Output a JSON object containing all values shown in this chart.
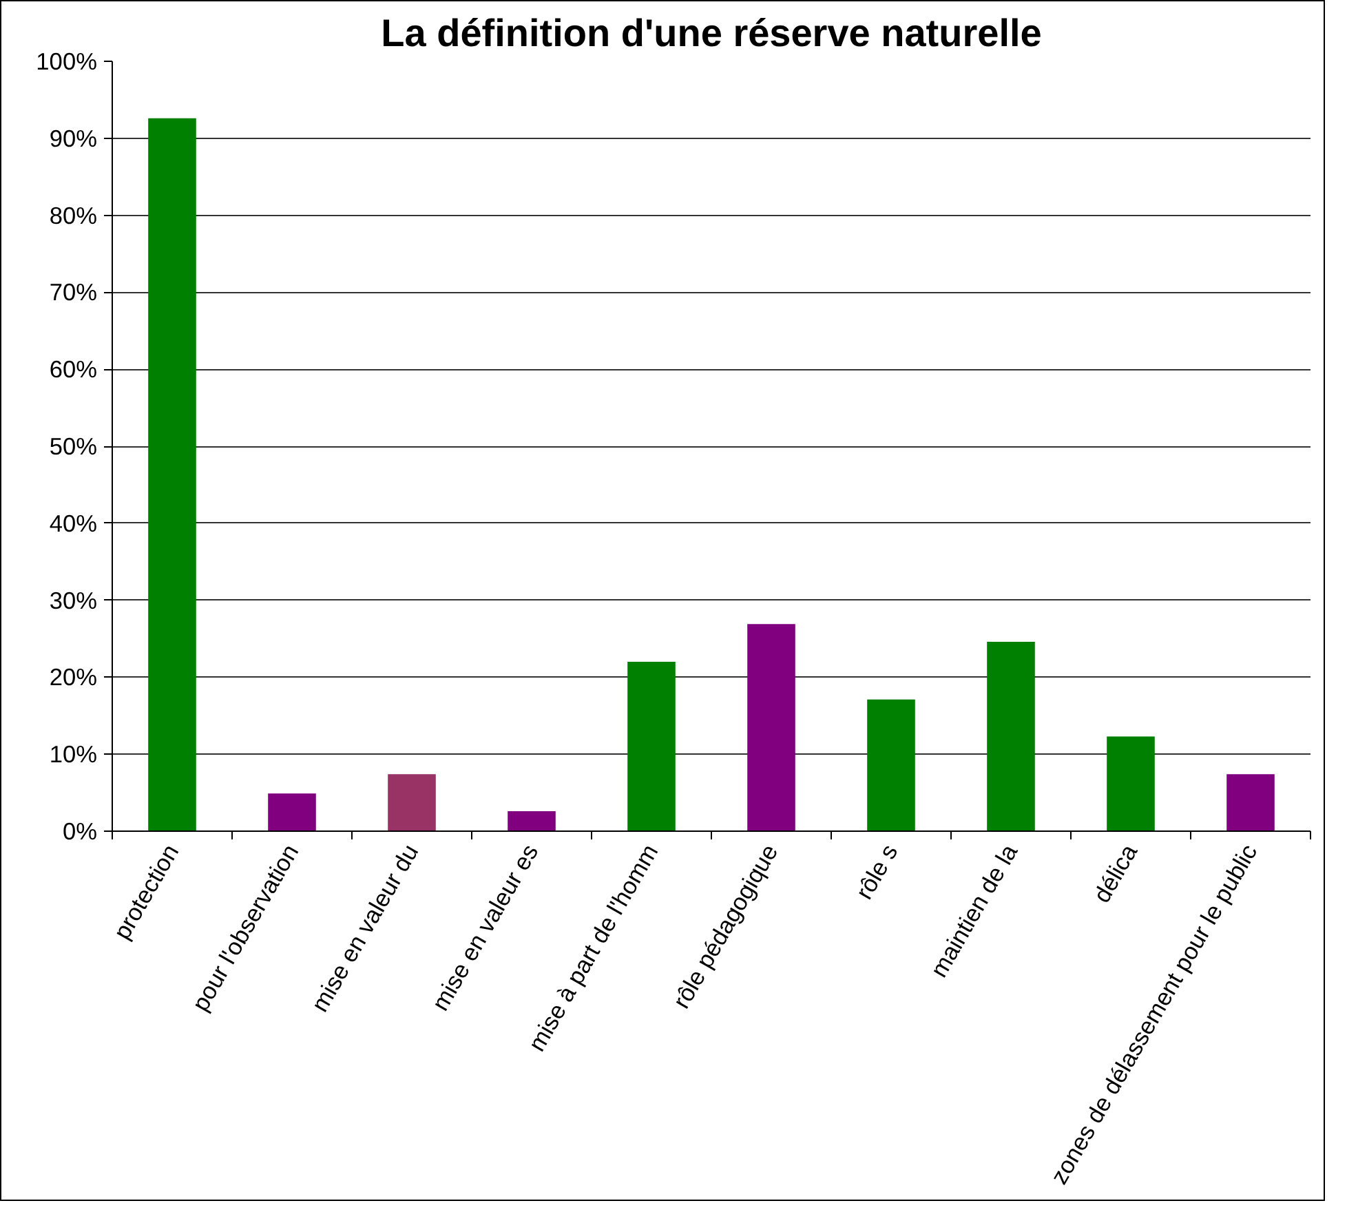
{
  "chart_data": {
    "type": "bar",
    "title": "La définition d'une réserve naturelle",
    "categories": [
      "protection",
      "pour l'observation",
      "mise en valeur du",
      "mise en valeur es",
      "mise à part de l'homm",
      "rôle pédagogique",
      "rôle s",
      "maintien de la",
      "délica",
      "zones de délassement pour le public"
    ],
    "values": [
      92.6,
      4.9,
      7.4,
      2.6,
      22.0,
      26.9,
      17.1,
      24.6,
      12.3,
      7.4
    ],
    "colors": [
      "#008000",
      "#800080",
      "#993366",
      "#800080",
      "#008000",
      "#800080",
      "#008000",
      "#008000",
      "#008000",
      "#800080"
    ],
    "ylim": [
      0,
      100
    ],
    "yticks": [
      {
        "value": 0,
        "label": "0%"
      },
      {
        "value": 10,
        "label": "10%"
      },
      {
        "value": 20,
        "label": "20%"
      },
      {
        "value": 30,
        "label": "30%"
      },
      {
        "value": 40,
        "label": "40%"
      },
      {
        "value": 50,
        "label": "50%"
      },
      {
        "value": 60,
        "label": "60%"
      },
      {
        "value": 70,
        "label": "70%"
      },
      {
        "value": 80,
        "label": "80%"
      },
      {
        "value": 90,
        "label": "90%"
      },
      {
        "value": 100,
        "label": "100%"
      }
    ],
    "grid": "y"
  }
}
